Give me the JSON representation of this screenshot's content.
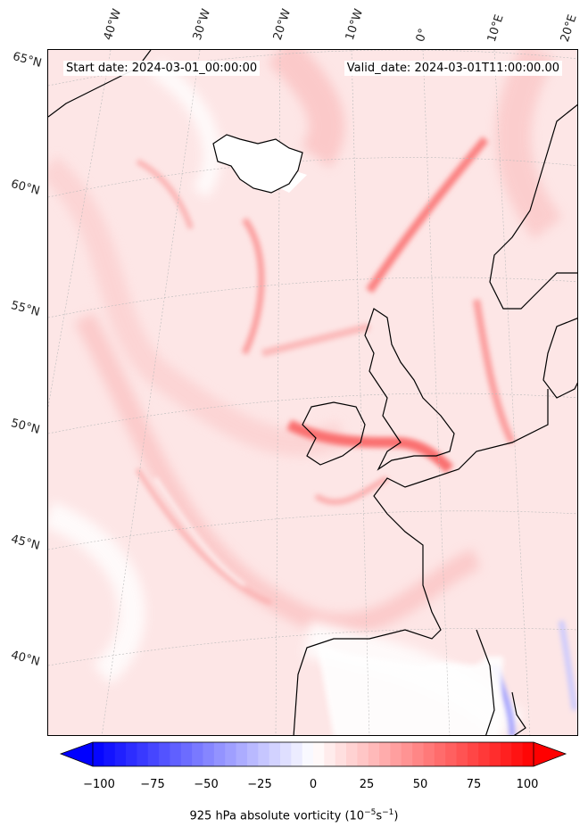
{
  "map": {
    "start_date": "Start date: 2024-03-01_00:00:00",
    "valid_date": "Valid_date: 2024-03-01T11:00:00.00",
    "lon_labels": [
      "40°W",
      "30°W",
      "20°W",
      "10°W",
      "0°",
      "10°E",
      "20°E"
    ],
    "lat_labels": [
      "65°N",
      "60°N",
      "55°N",
      "50°N",
      "45°N",
      "40°N"
    ],
    "colors": {
      "background": "#fde4e4",
      "positive": "#ff0000",
      "negative": "#0000ff",
      "coast": "#000000"
    }
  },
  "colorbar": {
    "ticks": [
      "−100",
      "−75",
      "−50",
      "−25",
      "0",
      "25",
      "50",
      "75",
      "100"
    ],
    "label": "925 hPa absolute vorticity (10",
    "label_exp1": "−5",
    "label_mid": "s",
    "label_exp2": "−1",
    "label_end": ")",
    "range": [
      -100,
      100
    ]
  }
}
